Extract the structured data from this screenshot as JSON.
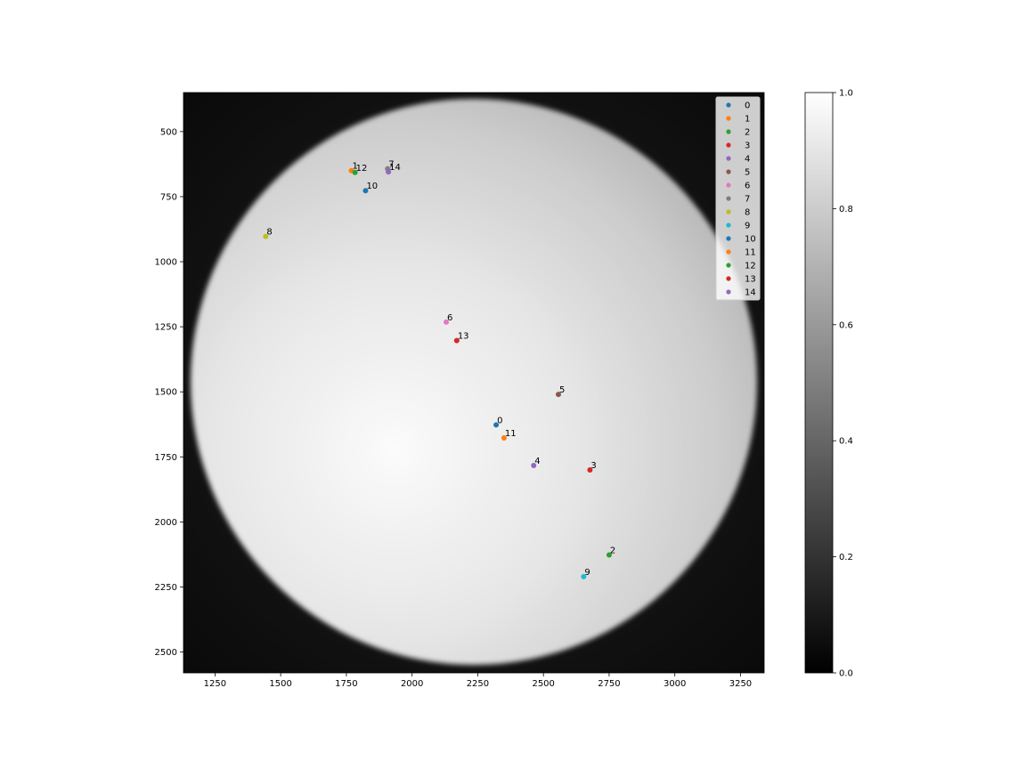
{
  "chart_data": {
    "type": "scatter",
    "title": "",
    "xlabel": "",
    "ylabel": "",
    "xlim": [
      1130,
      3340
    ],
    "ylim": [
      2580,
      350
    ],
    "y_inverted": true,
    "background": "grayscale image of a bright solar disk on dark background",
    "xticks": [
      1250,
      1500,
      1750,
      2000,
      2250,
      2500,
      2750,
      3000,
      3250
    ],
    "yticks": [
      500,
      750,
      1000,
      1250,
      1500,
      1750,
      2000,
      2250,
      2500
    ],
    "legend_position": "top-right",
    "series": [
      {
        "name": "0",
        "label": "0",
        "color": "#1f77b4",
        "x": 2320,
        "y": 1627
      },
      {
        "name": "1",
        "label": "1",
        "color": "#ff7f0e",
        "x": 1769,
        "y": 650
      },
      {
        "name": "2",
        "label": "2",
        "color": "#2ca02c",
        "x": 2750,
        "y": 2127
      },
      {
        "name": "3",
        "label": "3",
        "color": "#d62728",
        "x": 2677,
        "y": 1800
      },
      {
        "name": "4",
        "label": "4",
        "color": "#9467bd",
        "x": 2463,
        "y": 1783
      },
      {
        "name": "5",
        "label": "5",
        "color": "#8c564b",
        "x": 2557,
        "y": 1510
      },
      {
        "name": "6",
        "label": "6",
        "color": "#e377c2",
        "x": 2130,
        "y": 1232
      },
      {
        "name": "7",
        "label": "7",
        "color": "#7f7f7f",
        "x": 1907,
        "y": 643
      },
      {
        "name": "8",
        "label": "8",
        "color": "#bcbd22",
        "x": 1443,
        "y": 903
      },
      {
        "name": "9",
        "label": "9",
        "color": "#17becf",
        "x": 2653,
        "y": 2210
      },
      {
        "name": "10",
        "label": "10",
        "color": "#1f77b4",
        "x": 1823,
        "y": 727
      },
      {
        "name": "11",
        "label": "11",
        "color": "#ff7f0e",
        "x": 2350,
        "y": 1677
      },
      {
        "name": "12",
        "label": "12",
        "color": "#2ca02c",
        "x": 1783,
        "y": 657
      },
      {
        "name": "13",
        "label": "13",
        "color": "#d62728",
        "x": 2170,
        "y": 1303
      },
      {
        "name": "14",
        "label": "14",
        "color": "#9467bd",
        "x": 1910,
        "y": 655
      }
    ],
    "colorbar": {
      "cmap": "gray",
      "range": [
        0.0,
        1.0
      ],
      "ticks": [
        0.0,
        0.2,
        0.4,
        0.6,
        0.8,
        1.0
      ],
      "tick_labels": [
        "0.0",
        "0.2",
        "0.4",
        "0.6",
        "0.8",
        "1.0"
      ]
    }
  }
}
